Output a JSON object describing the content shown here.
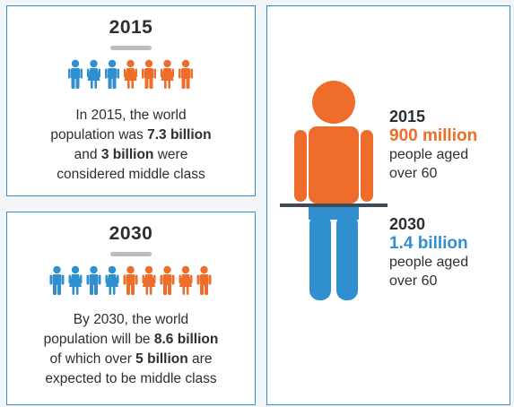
{
  "colors": {
    "orange": "#ee6d2a",
    "blue": "#2f8fcf",
    "text": "#2b2e33",
    "grey": "#bdbdbd"
  },
  "panel_2015": {
    "year": "2015",
    "people": [
      "male",
      "female",
      "male",
      "female",
      "male",
      "female",
      "male"
    ],
    "people_colors": [
      "blue",
      "blue",
      "blue",
      "orange",
      "orange",
      "orange",
      "orange"
    ],
    "line1": "In 2015, the world",
    "line2_a": "population was ",
    "line2_b": "7.3 billion",
    "line3_a": "and ",
    "line3_b": "3 billion",
    "line3_c": " were",
    "line4": "considered middle class"
  },
  "panel_2030": {
    "year": "2030",
    "people": [
      "male",
      "female",
      "male",
      "female",
      "male",
      "female",
      "male",
      "female",
      "male"
    ],
    "people_colors": [
      "blue",
      "blue",
      "blue",
      "blue",
      "orange",
      "orange",
      "orange",
      "orange",
      "orange"
    ],
    "line1": "By 2030, the world",
    "line2_a": "population will be ",
    "line2_b": "8.6 billion",
    "line3_a": "of which over ",
    "line3_b": "5 billion",
    "line3_c": " are",
    "line4": "expected to be middle class"
  },
  "aging": {
    "stat_2015": {
      "year": "2015",
      "value": "900 million",
      "line1": "people aged",
      "line2": "over 60"
    },
    "stat_2030": {
      "year": "2030",
      "value": "1.4 billion",
      "line1": "people aged",
      "line2": "over 60"
    }
  }
}
